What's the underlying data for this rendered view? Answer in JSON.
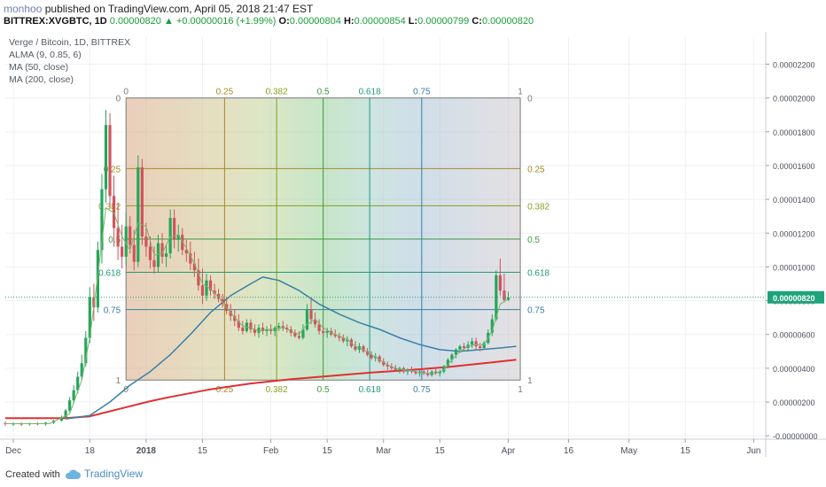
{
  "header": {
    "author": "monhoo",
    "published_text": "published on TradingView.com, April 05, 2018 21:47 EST",
    "symbol": "BITTREX:XVGBTC, 1D",
    "last": "0.00000820",
    "change_arrow": "▲",
    "change": "+0.00000016 (+1.99%)",
    "o_label": "O:",
    "o_value": "0.00000804",
    "h_label": "H:",
    "h_value": "0.00000854",
    "l_label": "L:",
    "l_value": "0.00000799",
    "c_label": "C:",
    "c_value": "0.00000820"
  },
  "footer": {
    "created_with": "Created with",
    "brand": "TradingView",
    "logo_icon": "tradingview-cloud-icon"
  },
  "chart_data": {
    "type": "candlestick",
    "legend": [
      "Verge / Bitcoin, 1D, BITTREX",
      "ALMA (9, 0.85, 6)",
      "MA (50, close)",
      "MA (200, close)"
    ],
    "x_ticks": [
      {
        "label": "Dec",
        "day": -19
      },
      {
        "label": "18",
        "day": 0
      },
      {
        "label": "2018",
        "day": 14
      },
      {
        "label": "15",
        "day": 28
      },
      {
        "label": "Feb",
        "day": 45
      },
      {
        "label": "15",
        "day": 59
      },
      {
        "label": "Mar",
        "day": 73
      },
      {
        "label": "15",
        "day": 87
      },
      {
        "label": "Apr",
        "day": 104
      },
      {
        "label": "16",
        "day": 119
      },
      {
        "label": "May",
        "day": 134
      },
      {
        "label": "15",
        "day": 148
      },
      {
        "label": "Jun",
        "day": 165
      }
    ],
    "y_ticks": [
      "-0.00000000",
      "0.00000200",
      "0.00000400",
      "0.00000600",
      "0.00000800",
      "0.00001000",
      "0.00001200",
      "0.00001400",
      "0.00001600",
      "0.00001800",
      "0.00002000",
      "0.00002200"
    ],
    "y_tick_values": [
      0,
      2,
      4,
      6,
      8,
      10,
      12,
      14,
      16,
      18,
      20,
      22
    ],
    "y_unit_scale": 1e-06,
    "ylim": [
      -0.2,
      23.6
    ],
    "xlim": [
      -21,
      168
    ],
    "last_price_label": "0.00000820",
    "last_price": 8.2,
    "fib_box": {
      "x_start": 9,
      "x_end": 107,
      "y_top": 20,
      "y_bottom": 3.3,
      "levels": [
        {
          "label": "0",
          "frac": 0,
          "color": "#7a7a7a"
        },
        {
          "label": "0.25",
          "frac": 0.25,
          "color": "#a9892a"
        },
        {
          "label": "0.382",
          "frac": 0.382,
          "color": "#8a9e22"
        },
        {
          "label": "0.5",
          "frac": 0.5,
          "color": "#3c9a3c"
        },
        {
          "label": "0.618",
          "frac": 0.618,
          "color": "#1f9a7a"
        },
        {
          "label": "0.75",
          "frac": 0.75,
          "color": "#3580a0"
        },
        {
          "label": "1",
          "frac": 1,
          "color": "#7a7a7a"
        }
      ]
    },
    "candles": [
      {
        "d": -21,
        "o": 0.75,
        "h": 0.85,
        "l": 0.6,
        "c": 0.7
      },
      {
        "d": -19,
        "o": 0.7,
        "h": 0.8,
        "l": 0.6,
        "c": 0.72
      },
      {
        "d": -17,
        "o": 0.72,
        "h": 0.8,
        "l": 0.58,
        "c": 0.68
      },
      {
        "d": -15,
        "o": 0.68,
        "h": 0.78,
        "l": 0.6,
        "c": 0.74
      },
      {
        "d": -13,
        "o": 0.74,
        "h": 0.82,
        "l": 0.62,
        "c": 0.68
      },
      {
        "d": -11,
        "o": 0.68,
        "h": 0.82,
        "l": 0.6,
        "c": 0.78
      },
      {
        "d": -9,
        "o": 0.78,
        "h": 0.95,
        "l": 0.7,
        "c": 0.9
      },
      {
        "d": -7,
        "o": 0.9,
        "h": 1.2,
        "l": 0.85,
        "c": 1.1
      },
      {
        "d": -6,
        "o": 1.1,
        "h": 1.6,
        "l": 1.05,
        "c": 1.5
      },
      {
        "d": -5,
        "o": 1.5,
        "h": 2.3,
        "l": 1.4,
        "c": 2.1
      },
      {
        "d": -4,
        "o": 2.1,
        "h": 3.0,
        "l": 1.9,
        "c": 2.7
      },
      {
        "d": -3,
        "o": 2.7,
        "h": 3.8,
        "l": 2.5,
        "c": 3.5
      },
      {
        "d": -2,
        "o": 3.5,
        "h": 4.8,
        "l": 3.3,
        "c": 4.3
      },
      {
        "d": -1,
        "o": 4.3,
        "h": 6.2,
        "l": 4.1,
        "c": 5.8
      },
      {
        "d": 0,
        "o": 5.8,
        "h": 8.8,
        "l": 5.5,
        "c": 8.2
      },
      {
        "d": 1,
        "o": 8.2,
        "h": 9.0,
        "l": 6.8,
        "c": 7.6
      },
      {
        "d": 2,
        "o": 7.6,
        "h": 11.5,
        "l": 7.3,
        "c": 11.0
      },
      {
        "d": 3,
        "o": 11.0,
        "h": 15.5,
        "l": 10.2,
        "c": 14.6
      },
      {
        "d": 4,
        "o": 14.6,
        "h": 19.3,
        "l": 13.8,
        "c": 18.4
      },
      {
        "d": 5,
        "o": 18.4,
        "h": 19.1,
        "l": 13.5,
        "c": 14.2
      },
      {
        "d": 6,
        "o": 14.2,
        "h": 15.4,
        "l": 11.2,
        "c": 12.3
      },
      {
        "d": 7,
        "o": 12.3,
        "h": 13.8,
        "l": 10.4,
        "c": 11.2
      },
      {
        "d": 8,
        "o": 11.2,
        "h": 12.5,
        "l": 9.9,
        "c": 10.6
      },
      {
        "d": 9,
        "o": 10.6,
        "h": 13.2,
        "l": 10.1,
        "c": 12.4
      },
      {
        "d": 10,
        "o": 12.4,
        "h": 13.0,
        "l": 10.8,
        "c": 11.3
      },
      {
        "d": 11,
        "o": 11.3,
        "h": 12.2,
        "l": 9.8,
        "c": 10.3
      },
      {
        "d": 12,
        "o": 10.3,
        "h": 16.6,
        "l": 10.0,
        "c": 15.9
      },
      {
        "d": 13,
        "o": 15.9,
        "h": 16.4,
        "l": 11.3,
        "c": 11.8
      },
      {
        "d": 14,
        "o": 11.8,
        "h": 12.6,
        "l": 10.6,
        "c": 11.2
      },
      {
        "d": 15,
        "o": 11.2,
        "h": 11.8,
        "l": 9.9,
        "c": 10.4
      },
      {
        "d": 16,
        "o": 10.4,
        "h": 11.2,
        "l": 9.6,
        "c": 10.0
      },
      {
        "d": 17,
        "o": 10.0,
        "h": 11.9,
        "l": 9.7,
        "c": 11.4
      },
      {
        "d": 18,
        "o": 11.4,
        "h": 12.0,
        "l": 10.2,
        "c": 10.6
      },
      {
        "d": 19,
        "o": 10.6,
        "h": 11.3,
        "l": 10.0,
        "c": 10.8
      },
      {
        "d": 20,
        "o": 10.8,
        "h": 13.4,
        "l": 10.5,
        "c": 12.9
      },
      {
        "d": 21,
        "o": 12.9,
        "h": 13.4,
        "l": 11.1,
        "c": 11.6
      },
      {
        "d": 22,
        "o": 11.6,
        "h": 12.5,
        "l": 10.9,
        "c": 11.9
      },
      {
        "d": 23,
        "o": 11.9,
        "h": 12.3,
        "l": 10.7,
        "c": 11.0
      },
      {
        "d": 24,
        "o": 11.0,
        "h": 11.6,
        "l": 10.3,
        "c": 10.8
      },
      {
        "d": 25,
        "o": 10.8,
        "h": 11.5,
        "l": 9.8,
        "c": 10.2
      },
      {
        "d": 26,
        "o": 10.2,
        "h": 10.9,
        "l": 9.4,
        "c": 9.8
      },
      {
        "d": 27,
        "o": 9.8,
        "h": 10.5,
        "l": 8.6,
        "c": 8.9
      },
      {
        "d": 28,
        "o": 8.9,
        "h": 9.9,
        "l": 7.8,
        "c": 8.3
      },
      {
        "d": 29,
        "o": 8.3,
        "h": 9.6,
        "l": 8.0,
        "c": 9.2
      },
      {
        "d": 30,
        "o": 9.2,
        "h": 9.5,
        "l": 8.3,
        "c": 8.6
      },
      {
        "d": 31,
        "o": 8.6,
        "h": 9.0,
        "l": 8.1,
        "c": 8.4
      },
      {
        "d": 32,
        "o": 8.4,
        "h": 8.7,
        "l": 7.9,
        "c": 8.1
      },
      {
        "d": 33,
        "o": 8.1,
        "h": 8.4,
        "l": 7.6,
        "c": 7.8
      },
      {
        "d": 34,
        "o": 7.8,
        "h": 8.2,
        "l": 7.2,
        "c": 7.4
      },
      {
        "d": 35,
        "o": 7.4,
        "h": 7.8,
        "l": 6.8,
        "c": 7.1
      },
      {
        "d": 36,
        "o": 7.1,
        "h": 7.5,
        "l": 6.5,
        "c": 6.8
      },
      {
        "d": 37,
        "o": 6.8,
        "h": 7.2,
        "l": 6.2,
        "c": 6.4
      },
      {
        "d": 38,
        "o": 6.4,
        "h": 6.8,
        "l": 6.0,
        "c": 6.2
      },
      {
        "d": 39,
        "o": 6.2,
        "h": 6.9,
        "l": 6.1,
        "c": 6.7
      },
      {
        "d": 40,
        "o": 6.7,
        "h": 6.9,
        "l": 6.1,
        "c": 6.3
      },
      {
        "d": 41,
        "o": 6.3,
        "h": 6.6,
        "l": 5.9,
        "c": 6.1
      },
      {
        "d": 42,
        "o": 6.1,
        "h": 6.6,
        "l": 5.8,
        "c": 6.4
      },
      {
        "d": 43,
        "o": 6.4,
        "h": 6.7,
        "l": 6.0,
        "c": 6.2
      },
      {
        "d": 44,
        "o": 6.2,
        "h": 6.5,
        "l": 5.9,
        "c": 6.3
      },
      {
        "d": 45,
        "o": 6.3,
        "h": 6.6,
        "l": 6.0,
        "c": 6.2
      },
      {
        "d": 46,
        "o": 6.2,
        "h": 6.5,
        "l": 5.9,
        "c": 6.4
      },
      {
        "d": 47,
        "o": 6.4,
        "h": 6.7,
        "l": 6.2,
        "c": 6.5
      },
      {
        "d": 48,
        "o": 6.5,
        "h": 6.8,
        "l": 6.2,
        "c": 6.4
      },
      {
        "d": 49,
        "o": 6.4,
        "h": 6.6,
        "l": 6.1,
        "c": 6.3
      },
      {
        "d": 50,
        "o": 6.3,
        "h": 6.5,
        "l": 5.9,
        "c": 6.1
      },
      {
        "d": 51,
        "o": 6.1,
        "h": 6.3,
        "l": 5.8,
        "c": 5.9
      },
      {
        "d": 52,
        "o": 5.9,
        "h": 6.2,
        "l": 5.7,
        "c": 5.8
      },
      {
        "d": 53,
        "o": 5.8,
        "h": 6.6,
        "l": 5.7,
        "c": 6.3
      },
      {
        "d": 54,
        "o": 6.3,
        "h": 7.8,
        "l": 6.2,
        "c": 7.5
      },
      {
        "d": 55,
        "o": 7.5,
        "h": 8.1,
        "l": 6.6,
        "c": 6.9
      },
      {
        "d": 56,
        "o": 6.9,
        "h": 7.3,
        "l": 6.4,
        "c": 6.6
      },
      {
        "d": 57,
        "o": 6.6,
        "h": 6.9,
        "l": 6.0,
        "c": 6.2
      },
      {
        "d": 58,
        "o": 6.2,
        "h": 6.5,
        "l": 5.9,
        "c": 6.1
      },
      {
        "d": 59,
        "o": 6.1,
        "h": 6.4,
        "l": 5.8,
        "c": 6.2
      },
      {
        "d": 60,
        "o": 6.2,
        "h": 6.4,
        "l": 5.9,
        "c": 6.0
      },
      {
        "d": 61,
        "o": 6.0,
        "h": 6.3,
        "l": 5.8,
        "c": 5.9
      },
      {
        "d": 62,
        "o": 5.9,
        "h": 6.1,
        "l": 5.6,
        "c": 5.8
      },
      {
        "d": 63,
        "o": 5.8,
        "h": 6.0,
        "l": 5.5,
        "c": 5.6
      },
      {
        "d": 64,
        "o": 5.6,
        "h": 5.9,
        "l": 5.3,
        "c": 5.7
      },
      {
        "d": 65,
        "o": 5.7,
        "h": 5.8,
        "l": 5.2,
        "c": 5.3
      },
      {
        "d": 66,
        "o": 5.3,
        "h": 5.6,
        "l": 5.0,
        "c": 5.1
      },
      {
        "d": 67,
        "o": 5.1,
        "h": 5.5,
        "l": 4.9,
        "c": 5.3
      },
      {
        "d": 68,
        "o": 5.3,
        "h": 5.4,
        "l": 4.9,
        "c": 5.0
      },
      {
        "d": 69,
        "o": 5.0,
        "h": 5.2,
        "l": 4.7,
        "c": 4.8
      },
      {
        "d": 70,
        "o": 4.8,
        "h": 5.0,
        "l": 4.5,
        "c": 4.6
      },
      {
        "d": 71,
        "o": 4.6,
        "h": 4.9,
        "l": 4.4,
        "c": 4.7
      },
      {
        "d": 72,
        "o": 4.7,
        "h": 4.8,
        "l": 4.3,
        "c": 4.4
      },
      {
        "d": 73,
        "o": 4.4,
        "h": 4.6,
        "l": 4.1,
        "c": 4.2
      },
      {
        "d": 74,
        "o": 4.2,
        "h": 4.4,
        "l": 3.9,
        "c": 4.1
      },
      {
        "d": 75,
        "o": 4.1,
        "h": 4.3,
        "l": 3.9,
        "c": 4.0
      },
      {
        "d": 76,
        "o": 4.0,
        "h": 4.2,
        "l": 3.8,
        "c": 3.9
      },
      {
        "d": 77,
        "o": 3.9,
        "h": 4.1,
        "l": 3.7,
        "c": 4.0
      },
      {
        "d": 78,
        "o": 4.0,
        "h": 4.1,
        "l": 3.7,
        "c": 3.8
      },
      {
        "d": 79,
        "o": 3.8,
        "h": 4.0,
        "l": 3.6,
        "c": 3.9
      },
      {
        "d": 80,
        "o": 3.9,
        "h": 4.1,
        "l": 3.7,
        "c": 3.8
      },
      {
        "d": 81,
        "o": 3.8,
        "h": 4.0,
        "l": 3.6,
        "c": 3.7
      },
      {
        "d": 82,
        "o": 3.7,
        "h": 3.9,
        "l": 3.5,
        "c": 3.8
      },
      {
        "d": 83,
        "o": 3.8,
        "h": 4.0,
        "l": 3.6,
        "c": 3.7
      },
      {
        "d": 84,
        "o": 3.7,
        "h": 3.9,
        "l": 3.5,
        "c": 3.6
      },
      {
        "d": 85,
        "o": 3.6,
        "h": 3.9,
        "l": 3.5,
        "c": 3.8
      },
      {
        "d": 86,
        "o": 3.8,
        "h": 4.0,
        "l": 3.6,
        "c": 3.7
      },
      {
        "d": 87,
        "o": 3.7,
        "h": 3.9,
        "l": 3.5,
        "c": 3.8
      },
      {
        "d": 88,
        "o": 3.8,
        "h": 4.2,
        "l": 3.7,
        "c": 4.1
      },
      {
        "d": 89,
        "o": 4.1,
        "h": 4.6,
        "l": 4.0,
        "c": 4.5
      },
      {
        "d": 90,
        "o": 4.5,
        "h": 4.9,
        "l": 4.3,
        "c": 4.8
      },
      {
        "d": 91,
        "o": 4.8,
        "h": 5.2,
        "l": 4.6,
        "c": 5.1
      },
      {
        "d": 92,
        "o": 5.1,
        "h": 5.4,
        "l": 4.9,
        "c": 5.3
      },
      {
        "d": 93,
        "o": 5.3,
        "h": 5.5,
        "l": 5.0,
        "c": 5.2
      },
      {
        "d": 94,
        "o": 5.2,
        "h": 5.6,
        "l": 5.0,
        "c": 5.4
      },
      {
        "d": 95,
        "o": 5.4,
        "h": 5.8,
        "l": 5.2,
        "c": 5.6
      },
      {
        "d": 96,
        "o": 5.6,
        "h": 5.8,
        "l": 5.1,
        "c": 5.3
      },
      {
        "d": 97,
        "o": 5.3,
        "h": 5.5,
        "l": 5.0,
        "c": 5.2
      },
      {
        "d": 98,
        "o": 5.2,
        "h": 5.6,
        "l": 5.1,
        "c": 5.5
      },
      {
        "d": 99,
        "o": 5.5,
        "h": 6.3,
        "l": 5.4,
        "c": 6.1
      },
      {
        "d": 100,
        "o": 6.1,
        "h": 7.2,
        "l": 5.9,
        "c": 6.9
      },
      {
        "d": 101,
        "o": 6.9,
        "h": 9.8,
        "l": 6.8,
        "c": 9.5
      },
      {
        "d": 102,
        "o": 9.5,
        "h": 10.5,
        "l": 8.3,
        "c": 8.6
      },
      {
        "d": 103,
        "o": 8.6,
        "h": 9.6,
        "l": 7.9,
        "c": 8.04
      },
      {
        "d": 104,
        "o": 8.04,
        "h": 8.54,
        "l": 7.99,
        "c": 8.2
      }
    ],
    "ma50": [
      [
        -6,
        1.0
      ],
      [
        0,
        1.2
      ],
      [
        5,
        2.0
      ],
      [
        10,
        3.0
      ],
      [
        15,
        3.8
      ],
      [
        20,
        4.8
      ],
      [
        25,
        6.0
      ],
      [
        30,
        7.3
      ],
      [
        35,
        8.3
      ],
      [
        40,
        9.0
      ],
      [
        43,
        9.4
      ],
      [
        47,
        9.2
      ],
      [
        52,
        8.6
      ],
      [
        57,
        7.8
      ],
      [
        62,
        7.2
      ],
      [
        67,
        6.7
      ],
      [
        72,
        6.3
      ],
      [
        77,
        5.8
      ],
      [
        82,
        5.4
      ],
      [
        87,
        5.1
      ],
      [
        92,
        5.0
      ],
      [
        97,
        5.1
      ],
      [
        102,
        5.2
      ],
      [
        106,
        5.3
      ]
    ],
    "ma200": [
      [
        -21,
        1.05
      ],
      [
        -6,
        1.05
      ],
      [
        0,
        1.15
      ],
      [
        5,
        1.45
      ],
      [
        10,
        1.75
      ],
      [
        15,
        2.05
      ],
      [
        20,
        2.3
      ],
      [
        30,
        2.75
      ],
      [
        40,
        3.1
      ],
      [
        50,
        3.35
      ],
      [
        60,
        3.55
      ],
      [
        70,
        3.75
      ],
      [
        80,
        3.9
      ],
      [
        90,
        4.1
      ],
      [
        100,
        4.35
      ],
      [
        106,
        4.5
      ]
    ],
    "alma": [
      [
        -21,
        0.72
      ],
      [
        -10,
        0.72
      ],
      [
        -5,
        1.3
      ],
      [
        -2,
        3.3
      ],
      [
        0,
        5.8
      ],
      [
        2,
        9.5
      ],
      [
        4,
        13.5
      ],
      [
        6,
        13.2
      ],
      [
        8,
        11.8
      ],
      [
        10,
        11.0
      ],
      [
        12,
        12.6
      ],
      [
        14,
        12.4
      ],
      [
        16,
        10.7
      ],
      [
        18,
        10.8
      ],
      [
        20,
        11.8
      ],
      [
        22,
        11.9
      ],
      [
        24,
        11.1
      ],
      [
        26,
        10.2
      ],
      [
        28,
        9.0
      ],
      [
        30,
        8.7
      ],
      [
        32,
        8.2
      ],
      [
        34,
        7.6
      ],
      [
        36,
        7.0
      ],
      [
        38,
        6.5
      ],
      [
        40,
        6.4
      ],
      [
        42,
        6.2
      ],
      [
        44,
        6.3
      ],
      [
        46,
        6.3
      ],
      [
        48,
        6.4
      ],
      [
        50,
        6.2
      ],
      [
        52,
        6.0
      ],
      [
        54,
        6.6
      ],
      [
        56,
        6.9
      ],
      [
        58,
        6.4
      ],
      [
        60,
        6.1
      ],
      [
        62,
        5.9
      ],
      [
        64,
        5.7
      ],
      [
        66,
        5.3
      ],
      [
        68,
        5.1
      ],
      [
        70,
        4.8
      ],
      [
        72,
        4.5
      ],
      [
        74,
        4.2
      ],
      [
        76,
        4.0
      ],
      [
        78,
        3.9
      ],
      [
        80,
        3.85
      ],
      [
        82,
        3.75
      ],
      [
        84,
        3.7
      ],
      [
        86,
        3.7
      ],
      [
        88,
        3.9
      ],
      [
        90,
        4.5
      ],
      [
        92,
        5.0
      ],
      [
        94,
        5.3
      ],
      [
        96,
        5.4
      ],
      [
        98,
        5.4
      ],
      [
        100,
        6.2
      ],
      [
        102,
        7.8
      ],
      [
        104,
        8.1
      ]
    ],
    "colors": {
      "up": "#26a55a",
      "down": "#d0535b",
      "ma50": "#3a7fa6",
      "ma200": "#e03030",
      "alma": "#7ab46e",
      "price_tag": "#1fa37a"
    }
  }
}
